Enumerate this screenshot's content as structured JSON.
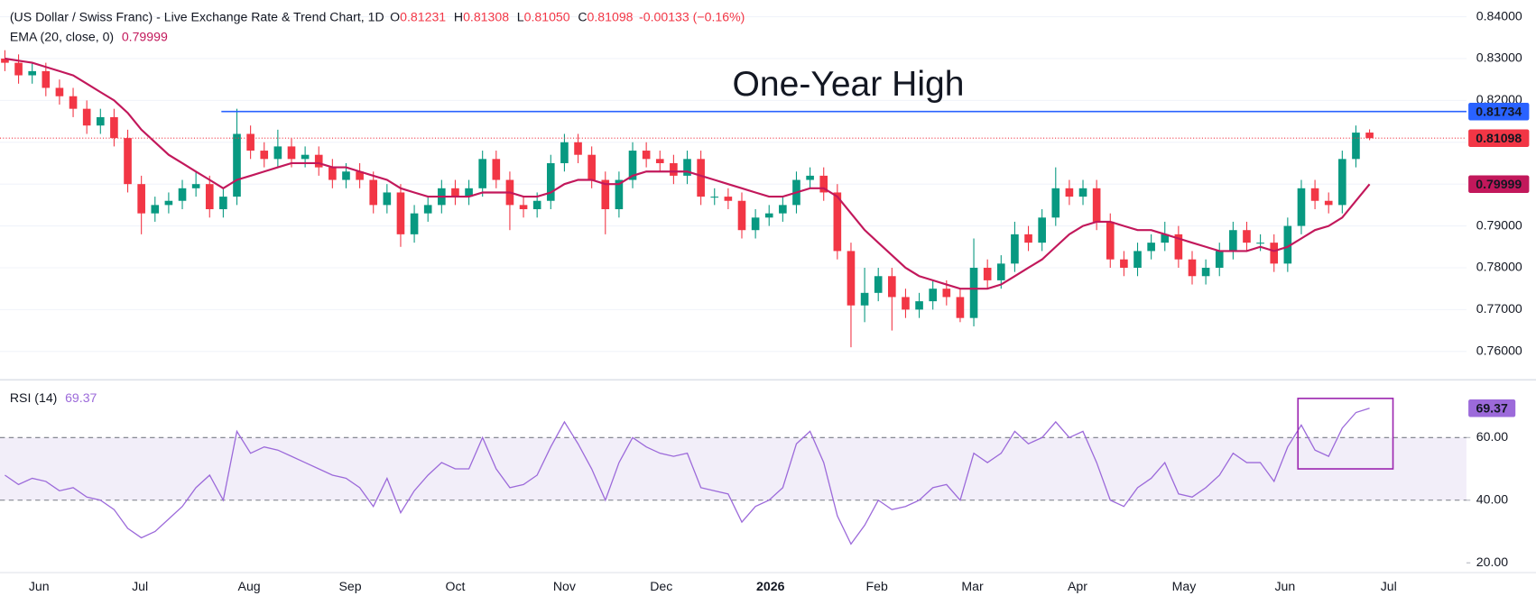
{
  "chart_data": [
    {
      "type": "candlestick",
      "title": "(US Dollar / Swiss Franc) - Live Exchange Rate & Trend Chart, 1D",
      "header": [
        {
          "label": "O",
          "value": 0.81231
        },
        {
          "label": "H",
          "value": 0.81308
        },
        {
          "label": "L",
          "value": 0.8105,
          "value_label": "0.81050"
        },
        {
          "label": "C",
          "value": 0.81098
        }
      ],
      "change_text": "-0.00133 (−0.16%)",
      "up_color": "#089981",
      "down_color": "#f23645",
      "open": [
        0.83,
        0.829,
        0.826,
        0.827,
        0.823,
        0.821,
        0.818,
        0.814,
        0.816,
        0.811,
        0.8,
        0.793,
        0.795,
        0.796,
        0.799,
        0.8,
        0.794,
        0.797,
        0.812,
        0.808,
        0.806,
        0.809,
        0.806,
        0.807,
        0.804,
        0.801,
        0.803,
        0.801,
        0.795,
        0.798,
        0.788,
        0.793,
        0.795,
        0.799,
        0.797,
        0.799,
        0.806,
        0.801,
        0.795,
        0.794,
        0.796,
        0.805,
        0.81,
        0.807,
        0.801,
        0.794,
        0.801,
        0.808,
        0.806,
        0.805,
        0.802,
        0.806,
        0.797,
        0.797,
        0.796,
        0.789,
        0.792,
        0.793,
        0.795,
        0.801,
        0.802,
        0.798,
        0.784,
        0.771,
        0.774,
        0.778,
        0.773,
        0.77,
        0.772,
        0.775,
        0.773,
        0.768,
        0.78,
        0.777,
        0.781,
        0.788,
        0.786,
        0.792,
        0.799,
        0.797,
        0.799,
        0.791,
        0.782,
        0.78,
        0.784,
        0.786,
        0.788,
        0.782,
        0.778,
        0.78,
        0.784,
        0.789,
        0.786,
        0.786,
        0.781,
        0.79,
        0.799,
        0.796,
        0.795,
        0.806,
        0.81231
      ],
      "high": [
        0.832,
        0.831,
        0.829,
        0.829,
        0.825,
        0.823,
        0.82,
        0.818,
        0.818,
        0.813,
        0.802,
        0.797,
        0.798,
        0.801,
        0.803,
        0.802,
        0.799,
        0.818,
        0.814,
        0.81,
        0.813,
        0.811,
        0.809,
        0.809,
        0.806,
        0.805,
        0.805,
        0.803,
        0.8,
        0.8,
        0.795,
        0.797,
        0.801,
        0.801,
        0.801,
        0.808,
        0.808,
        0.803,
        0.797,
        0.798,
        0.807,
        0.812,
        0.812,
        0.809,
        0.803,
        0.803,
        0.81,
        0.81,
        0.808,
        0.807,
        0.808,
        0.808,
        0.799,
        0.799,
        0.798,
        0.794,
        0.795,
        0.797,
        0.803,
        0.804,
        0.804,
        0.8,
        0.786,
        0.78,
        0.78,
        0.78,
        0.775,
        0.774,
        0.777,
        0.777,
        0.775,
        0.787,
        0.782,
        0.783,
        0.791,
        0.79,
        0.794,
        0.804,
        0.801,
        0.801,
        0.801,
        0.793,
        0.784,
        0.786,
        0.788,
        0.791,
        0.79,
        0.784,
        0.782,
        0.786,
        0.791,
        0.791,
        0.788,
        0.788,
        0.792,
        0.801,
        0.801,
        0.798,
        0.808,
        0.814,
        0.81308
      ],
      "low": [
        0.827,
        0.824,
        0.824,
        0.821,
        0.819,
        0.816,
        0.812,
        0.812,
        0.809,
        0.798,
        0.788,
        0.791,
        0.793,
        0.794,
        0.797,
        0.792,
        0.792,
        0.795,
        0.806,
        0.804,
        0.804,
        0.804,
        0.804,
        0.802,
        0.799,
        0.799,
        0.799,
        0.793,
        0.793,
        0.785,
        0.786,
        0.791,
        0.793,
        0.795,
        0.795,
        0.797,
        0.799,
        0.789,
        0.792,
        0.792,
        0.794,
        0.803,
        0.805,
        0.799,
        0.788,
        0.792,
        0.799,
        0.804,
        0.803,
        0.8,
        0.8,
        0.795,
        0.795,
        0.794,
        0.787,
        0.787,
        0.79,
        0.791,
        0.793,
        0.799,
        0.796,
        0.782,
        0.761,
        0.767,
        0.772,
        0.765,
        0.768,
        0.768,
        0.77,
        0.771,
        0.767,
        0.766,
        0.775,
        0.775,
        0.779,
        0.784,
        0.784,
        0.79,
        0.795,
        0.795,
        0.789,
        0.78,
        0.778,
        0.778,
        0.782,
        0.784,
        0.78,
        0.776,
        0.776,
        0.778,
        0.782,
        0.784,
        0.784,
        0.779,
        0.779,
        0.788,
        0.794,
        0.793,
        0.793,
        0.804,
        0.8105
      ],
      "close": [
        0.829,
        0.826,
        0.827,
        0.823,
        0.821,
        0.818,
        0.814,
        0.816,
        0.811,
        0.8,
        0.793,
        0.795,
        0.796,
        0.799,
        0.8,
        0.794,
        0.797,
        0.812,
        0.808,
        0.806,
        0.809,
        0.806,
        0.807,
        0.804,
        0.801,
        0.803,
        0.801,
        0.795,
        0.798,
        0.788,
        0.793,
        0.795,
        0.799,
        0.797,
        0.799,
        0.806,
        0.801,
        0.795,
        0.794,
        0.796,
        0.805,
        0.81,
        0.807,
        0.801,
        0.794,
        0.801,
        0.808,
        0.806,
        0.805,
        0.802,
        0.806,
        0.797,
        0.797,
        0.796,
        0.789,
        0.792,
        0.793,
        0.795,
        0.801,
        0.802,
        0.798,
        0.784,
        0.771,
        0.774,
        0.778,
        0.773,
        0.77,
        0.772,
        0.775,
        0.773,
        0.768,
        0.78,
        0.777,
        0.781,
        0.788,
        0.786,
        0.792,
        0.799,
        0.797,
        0.799,
        0.791,
        0.782,
        0.78,
        0.784,
        0.786,
        0.788,
        0.782,
        0.778,
        0.78,
        0.784,
        0.789,
        0.786,
        0.786,
        0.781,
        0.79,
        0.799,
        0.796,
        0.795,
        0.806,
        0.81231,
        0.81098
      ],
      "ema": {
        "name": "EMA (20, close, 0)",
        "color": "#c2185b",
        "values": [
          0.83,
          0.8295,
          0.829,
          0.828,
          0.827,
          0.826,
          0.824,
          0.822,
          0.82,
          0.817,
          0.813,
          0.81,
          0.807,
          0.805,
          0.803,
          0.801,
          0.799,
          0.801,
          0.802,
          0.803,
          0.804,
          0.805,
          0.805,
          0.805,
          0.804,
          0.804,
          0.803,
          0.802,
          0.801,
          0.799,
          0.798,
          0.797,
          0.797,
          0.797,
          0.797,
          0.798,
          0.798,
          0.798,
          0.797,
          0.797,
          0.798,
          0.8,
          0.801,
          0.801,
          0.8,
          0.8,
          0.802,
          0.803,
          0.803,
          0.803,
          0.803,
          0.802,
          0.801,
          0.8,
          0.799,
          0.798,
          0.797,
          0.797,
          0.798,
          0.799,
          0.799,
          0.797,
          0.793,
          0.789,
          0.786,
          0.783,
          0.78,
          0.778,
          0.777,
          0.776,
          0.775,
          0.775,
          0.775,
          0.776,
          0.778,
          0.78,
          0.782,
          0.785,
          0.788,
          0.79,
          0.791,
          0.791,
          0.79,
          0.789,
          0.789,
          0.788,
          0.787,
          0.786,
          0.785,
          0.784,
          0.784,
          0.784,
          0.785,
          0.784,
          0.785,
          0.787,
          0.789,
          0.79,
          0.792,
          0.796,
          0.79999
        ]
      },
      "annotation": {
        "text": "One-Year High",
        "value": 0.81734,
        "color": "#2962ff"
      },
      "xlim": [
        -0.36,
        107.1
      ],
      "ylim": [
        0.75322,
        0.84398
      ],
      "yticks": [
        {
          "value": 0.76,
          "label": "0.76000"
        },
        {
          "value": 0.77,
          "label": "0.77000"
        },
        {
          "value": 0.78,
          "label": "0.78000"
        },
        {
          "value": 0.79,
          "label": "0.79000"
        },
        {
          "value": 0.8,
          "label": "0.80000"
        },
        {
          "value": 0.81,
          "label": "0.81000"
        },
        {
          "value": 0.82,
          "label": "0.82000"
        },
        {
          "value": 0.83,
          "label": "0.83000"
        },
        {
          "value": 0.84,
          "label": "0.84000"
        }
      ],
      "xticks": [
        {
          "value": 2.5,
          "label": "Jun"
        },
        {
          "value": 9.9,
          "label": "Jul"
        },
        {
          "value": 17.9,
          "label": "Aug"
        },
        {
          "value": 25.3,
          "label": "Sep"
        },
        {
          "value": 33.0,
          "label": "Oct"
        },
        {
          "value": 41.0,
          "label": "Nov"
        },
        {
          "value": 48.1,
          "label": "Dec"
        },
        {
          "value": 56.1,
          "label": "2026"
        },
        {
          "value": 63.9,
          "label": "Feb"
        },
        {
          "value": 70.9,
          "label": "Mar"
        },
        {
          "value": 78.6,
          "label": "Apr"
        },
        {
          "value": 86.4,
          "label": "May"
        },
        {
          "value": 93.8,
          "label": "Jun"
        },
        {
          "value": 101.4,
          "label": "Jul"
        }
      ],
      "grid": true
    },
    {
      "type": "line",
      "name": "RSI (14)",
      "color": "#9c6ada",
      "values": [
        48,
        45,
        47,
        46,
        43,
        44,
        41,
        40,
        37,
        31,
        28,
        30,
        34,
        38,
        44,
        48,
        40,
        62,
        55,
        57,
        56,
        54,
        52,
        50,
        48,
        47,
        44,
        38,
        47,
        36,
        43,
        48,
        52,
        50,
        50,
        60,
        50,
        44,
        45,
        48,
        57,
        65,
        58,
        50,
        40,
        52,
        60,
        57,
        55,
        54,
        55,
        44,
        43,
        42,
        33,
        38,
        40,
        44,
        58,
        62,
        52,
        35,
        26,
        32,
        40,
        37,
        38,
        40,
        44,
        45,
        40,
        55,
        52,
        55,
        62,
        58,
        60,
        65,
        60,
        62,
        52,
        40,
        38,
        44,
        47,
        52,
        42,
        41,
        44,
        48,
        55,
        52,
        52,
        46,
        57,
        64,
        56,
        54,
        63,
        68,
        69.37
      ],
      "band": [
        40,
        60
      ],
      "ylim": [
        16.875,
        77.81
      ],
      "yticks": [
        {
          "value": 20,
          "label": "20.00"
        },
        {
          "value": 40,
          "label": "40.00"
        },
        {
          "value": 60,
          "label": "60.00"
        }
      ]
    }
  ]
}
